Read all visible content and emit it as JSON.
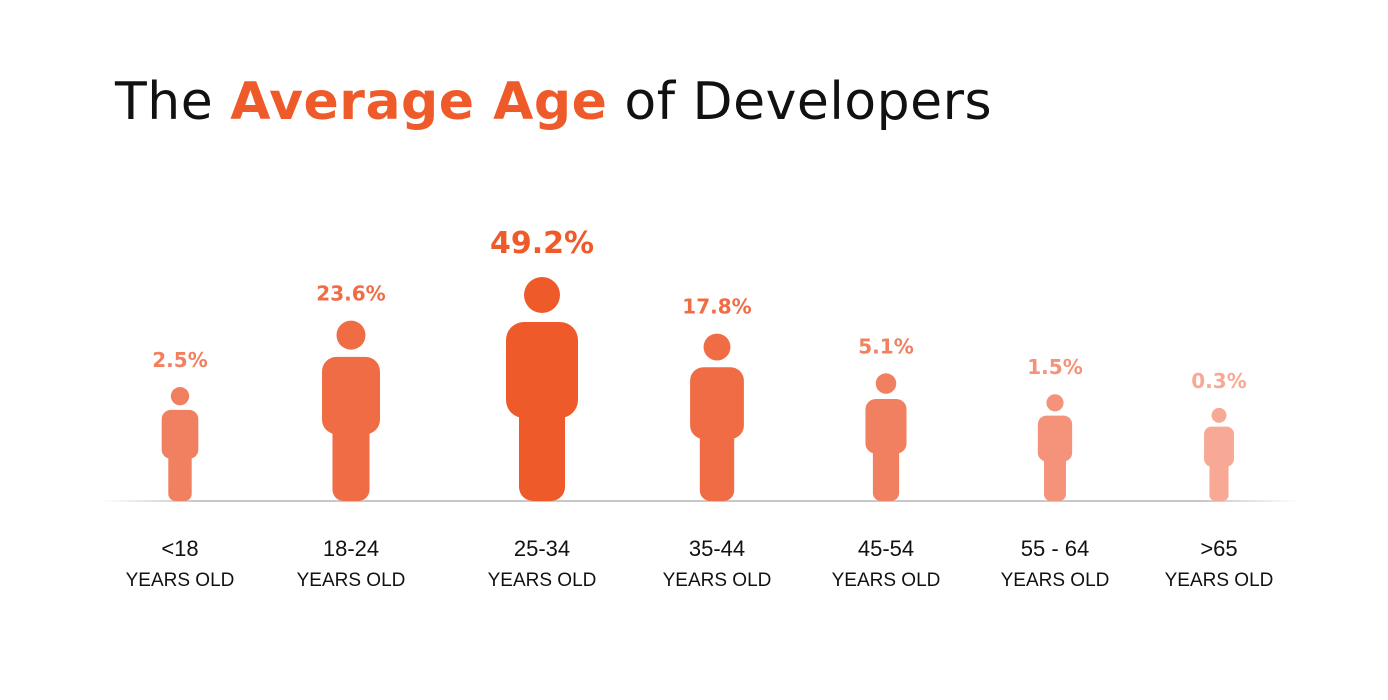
{
  "title": {
    "prefix": "The ",
    "highlight": "Average Age",
    "suffix": " of Developers"
  },
  "colors": {
    "accent": "#ef5a2a",
    "axis": "#cccccc",
    "text": "#111111"
  },
  "chart_data": {
    "type": "bar",
    "title": "The Average Age of Developers",
    "categories": [
      "<18",
      "18-24",
      "25-34",
      "35-44",
      "45-54",
      "55 - 64",
      ">65"
    ],
    "sublabel": "YEARS OLD",
    "values": [
      2.5,
      23.6,
      49.2,
      17.8,
      5.1,
      1.5,
      0.3
    ],
    "value_labels": [
      "2.5%",
      "23.6%",
      "49.2%",
      "17.8%",
      "5.1%",
      "1.5%",
      "0.3%"
    ],
    "value_unit": "%",
    "grid": false,
    "legend": false,
    "colors": [
      "#f08060",
      "#f06c44",
      "#ef5a2a",
      "#f06c44",
      "#f08060",
      "#f4927a",
      "#f7a995"
    ]
  }
}
